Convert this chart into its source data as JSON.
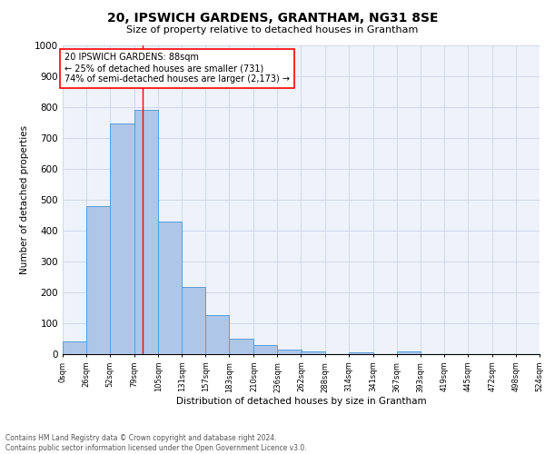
{
  "title": "20, IPSWICH GARDENS, GRANTHAM, NG31 8SE",
  "subtitle": "Size of property relative to detached houses in Grantham",
  "xlabel": "Distribution of detached houses by size in Grantham",
  "ylabel": "Number of detached properties",
  "bar_edges": [
    0,
    26,
    52,
    79,
    105,
    131,
    157,
    183,
    210,
    236,
    262,
    288,
    314,
    341,
    367,
    393,
    419,
    445,
    472,
    498,
    524
  ],
  "bar_heights": [
    40,
    480,
    748,
    790,
    430,
    218,
    127,
    50,
    28,
    15,
    8,
    0,
    7,
    0,
    8,
    0,
    0,
    0,
    0,
    0
  ],
  "bar_color": "#aec6e8",
  "bar_edge_color": "#5b9bd5",
  "vline_x": 88,
  "vline_color": "red",
  "annotation_text": "20 IPSWICH GARDENS: 88sqm\n← 25% of detached houses are smaller (731)\n74% of semi-detached houses are larger (2,173) →",
  "annotation_box_color": "white",
  "annotation_box_edge_color": "red",
  "ylim": [
    0,
    1000
  ],
  "yticks": [
    0,
    100,
    200,
    300,
    400,
    500,
    600,
    700,
    800,
    900,
    1000
  ],
  "xtick_labels": [
    "0sqm",
    "26sqm",
    "52sqm",
    "79sqm",
    "105sqm",
    "131sqm",
    "157sqm",
    "183sqm",
    "210sqm",
    "236sqm",
    "262sqm",
    "288sqm",
    "314sqm",
    "341sqm",
    "367sqm",
    "393sqm",
    "419sqm",
    "445sqm",
    "472sqm",
    "498sqm",
    "524sqm"
  ],
  "footer_text": "Contains HM Land Registry data © Crown copyright and database right 2024.\nContains public sector information licensed under the Open Government Licence v3.0.",
  "grid_color": "#d0d8e8",
  "background_color": "#eef3fb"
}
